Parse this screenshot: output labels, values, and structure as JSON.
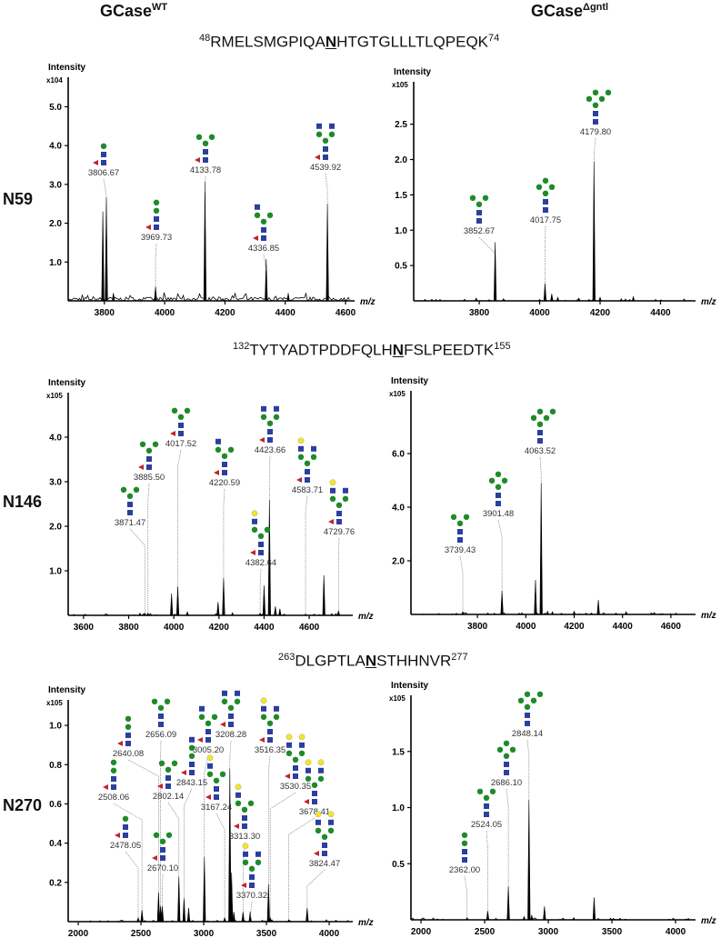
{
  "columns": {
    "wt": {
      "base": "GCase",
      "sup": "WT"
    },
    "mut": {
      "base": "GCase",
      "sup": "Δgntl"
    }
  },
  "rows": [
    {
      "site": "N59",
      "peptide": {
        "start": "48",
        "pre": "RMELSMGPIQA",
        "n": "N",
        "post": "HTGTGLLLTLQPEQK",
        "end": "74"
      }
    },
    {
      "site": "N146",
      "peptide": {
        "start": "132",
        "pre": "TYTYADTPDDFQLH",
        "n": "N",
        "post": "FSLPEEDTK",
        "end": "155"
      }
    },
    {
      "site": "N270",
      "peptide": {
        "start": "263",
        "pre": "DLGPTLA",
        "n": "N",
        "post": "STHHNVR",
        "end": "277"
      }
    }
  ],
  "colors": {
    "glcnac": "#2b3f9e",
    "man": "#1f8a2a",
    "fuc": "#c0242b",
    "gal": "#f2e52a",
    "spectrum": "#000000"
  },
  "chart_data": [
    {
      "type": "line",
      "panel": "N59-WT",
      "ylabel": "Intensity",
      "yscale": "x10^4",
      "xlabel": "m/z",
      "xlim": [
        3680,
        4630
      ],
      "ylim": [
        0,
        5.76
      ],
      "xticks": [
        "3800",
        "4000",
        "4200",
        "4400",
        "4600"
      ],
      "yticks": [
        "1.0",
        "2.0",
        "3.0",
        "4.0",
        "5.0"
      ],
      "peaks": [
        [
          3795,
          2.3
        ],
        [
          3806.67,
          2.67
        ],
        [
          3830,
          0.2
        ],
        [
          3969.73,
          0.37
        ],
        [
          4133.78,
          3.07
        ],
        [
          4336.85,
          1.08
        ],
        [
          4410,
          0.2
        ],
        [
          4539.92,
          2.5
        ]
      ],
      "annotations": [
        {
          "label": "3806.67",
          "glycan": {
            "fuc": true,
            "core": 2,
            "man": 1,
            "branch": 0,
            "ant": 0,
            "gal": 0
          }
        },
        {
          "label": "3969.73",
          "glycan": {
            "fuc": true,
            "core": 2,
            "man": 2,
            "branch": 0,
            "ant": 0,
            "gal": 0
          }
        },
        {
          "label": "4133.78",
          "glycan": {
            "fuc": true,
            "core": 2,
            "man": 3,
            "branch": 2,
            "ant": 0,
            "gal": 0
          }
        },
        {
          "label": "4336.85",
          "glycan": {
            "fuc": true,
            "core": 2,
            "man": 3,
            "branch": 2,
            "ant": 1,
            "gal": 0
          }
        },
        {
          "label": "4539.92",
          "glycan": {
            "fuc": true,
            "core": 2,
            "man": 3,
            "branch": 2,
            "ant": 2,
            "gal": 0
          }
        }
      ]
    },
    {
      "type": "line",
      "panel": "N59-dgntl",
      "ylabel": "Intensity",
      "yscale": "x10^5",
      "xlabel": "m/z",
      "xlim": [
        3583,
        4516
      ],
      "ylim": [
        0,
        3.1
      ],
      "xticks": [
        "3800",
        "4000",
        "4200",
        "4400"
      ],
      "yticks": [
        "0.5",
        "1.0",
        "1.5",
        "2.0",
        "2.5"
      ],
      "peaks": [
        [
          3790,
          0.04
        ],
        [
          3852.67,
          0.83
        ],
        [
          3880,
          0.03
        ],
        [
          4017.75,
          0.25
        ],
        [
          4040,
          0.1
        ],
        [
          4060,
          0.05
        ],
        [
          4130,
          0.04
        ],
        [
          4179.8,
          1.97
        ],
        [
          4200,
          0.05
        ],
        [
          4270,
          0.03
        ],
        [
          4310,
          0.06
        ]
      ],
      "annotations": [
        {
          "label": "3852.67",
          "glycan": {
            "fuc": false,
            "core": 2,
            "man": 3,
            "branch": 2,
            "ant": 0,
            "gal": 0
          }
        },
        {
          "label": "4017.75",
          "glycan": {
            "fuc": false,
            "core": 2,
            "man": 4,
            "branch": 2,
            "ant": 0,
            "gal": 0
          }
        },
        {
          "label": "4179.80",
          "glycan": {
            "fuc": false,
            "core": 2,
            "man": 5,
            "branch": 2,
            "ant": 0,
            "gal": 0
          }
        }
      ]
    },
    {
      "type": "line",
      "panel": "N146-WT",
      "ylabel": "Intensity",
      "yscale": "x10^5",
      "xlabel": "m/z",
      "xlim": [
        3532,
        4793
      ],
      "ylim": [
        0,
        5.0
      ],
      "xticks": [
        "3600",
        "3800",
        "4000",
        "4200",
        "4400",
        "4600"
      ],
      "yticks": [
        "1.0",
        "2.0",
        "3.0",
        "4.0"
      ],
      "peaks": [
        [
          3850,
          0.05
        ],
        [
          3871.47,
          0.05
        ],
        [
          3885.5,
          0.05
        ],
        [
          3990,
          0.49
        ],
        [
          4017.52,
          0.65
        ],
        [
          4060,
          0.08
        ],
        [
          4196,
          0.3
        ],
        [
          4220.59,
          0.84
        ],
        [
          4260,
          0.06
        ],
        [
          4382.64,
          0.05
        ],
        [
          4400,
          0.67
        ],
        [
          4423.66,
          2.6
        ],
        [
          4450,
          0.2
        ],
        [
          4470,
          0.15
        ],
        [
          4583.71,
          0.03
        ],
        [
          4665,
          0.9
        ],
        [
          4700,
          0.04
        ],
        [
          4729.76,
          0.1
        ]
      ],
      "annotations": [
        {
          "label": "3871.47",
          "glycan": {
            "fuc": false,
            "core": 2,
            "man": 3,
            "branch": 2,
            "ant": 0,
            "gal": 0
          }
        },
        {
          "label": "3885.50",
          "glycan": {
            "fuc": true,
            "core": 2,
            "man": 3,
            "branch": 2,
            "ant": 0,
            "gal": 0
          }
        },
        {
          "label": "4017.52",
          "glycan": {
            "fuc": true,
            "core": 2,
            "man": 3,
            "branch": 2,
            "ant": 0,
            "gal": 0
          }
        },
        {
          "label": "4220.59",
          "glycan": {
            "fuc": true,
            "core": 2,
            "man": 3,
            "branch": 2,
            "ant": 1,
            "gal": 0
          }
        },
        {
          "label": "4382.64",
          "glycan": {
            "fuc": true,
            "core": 2,
            "man": 3,
            "branch": 2,
            "ant": 1,
            "gal": 1
          }
        },
        {
          "label": "4423.66",
          "glycan": {
            "fuc": true,
            "core": 2,
            "man": 3,
            "branch": 2,
            "ant": 2,
            "gal": 0
          }
        },
        {
          "label": "4583.71",
          "glycan": {
            "fuc": true,
            "core": 2,
            "man": 3,
            "branch": 2,
            "ant": 2,
            "gal": 1
          }
        },
        {
          "label": "4729.76",
          "glycan": {
            "fuc": true,
            "core": 2,
            "man": 3,
            "branch": 2,
            "ant": 2,
            "gal": 1
          }
        }
      ]
    },
    {
      "type": "line",
      "panel": "N146-dgntl",
      "ylabel": "Intensity",
      "yscale": "x10^5",
      "xlabel": "m/z",
      "xlim": [
        3525,
        4702
      ],
      "ylim": [
        0,
        8.34
      ],
      "xticks": [
        "3800",
        "4000",
        "4200",
        "4400",
        "4600"
      ],
      "yticks": [
        "2.0",
        "4.0",
        "6.0"
      ],
      "peaks": [
        [
          3739.43,
          0.1
        ],
        [
          3870,
          0.05
        ],
        [
          3901.48,
          0.88
        ],
        [
          4040,
          1.29
        ],
        [
          4063.52,
          4.9
        ],
        [
          4090,
          0.12
        ],
        [
          4110,
          0.1
        ],
        [
          4200,
          0.12
        ],
        [
          4300,
          0.54
        ],
        [
          4415,
          0.1
        ]
      ],
      "annotations": [
        {
          "label": "3739.43",
          "glycan": {
            "fuc": false,
            "core": 2,
            "man": 3,
            "branch": 2,
            "ant": 0,
            "gal": 0
          }
        },
        {
          "label": "3901.48",
          "glycan": {
            "fuc": false,
            "core": 2,
            "man": 4,
            "branch": 2,
            "ant": 0,
            "gal": 0
          }
        },
        {
          "label": "4063.52",
          "glycan": {
            "fuc": false,
            "core": 2,
            "man": 5,
            "branch": 2,
            "ant": 0,
            "gal": 0
          }
        }
      ]
    },
    {
      "type": "line",
      "panel": "N270-WT",
      "ylabel": "Intensity",
      "yscale": "x10^5",
      "xlabel": "m/z",
      "xlim": [
        1920,
        4188
      ],
      "ylim": [
        0,
        1.13
      ],
      "xticks": [
        "2000",
        "2500",
        "3000",
        "3500",
        "4000"
      ],
      "yticks": [
        "0.2",
        "0.4",
        "0.6",
        "0.8",
        "1.0"
      ],
      "peaks": [
        [
          2478.05,
          0.02
        ],
        [
          2508.06,
          0.06
        ],
        [
          2640.08,
          0.15
        ],
        [
          2656.09,
          0.08
        ],
        [
          2670.1,
          0.08
        ],
        [
          2802.14,
          0.23
        ],
        [
          2843.15,
          0.12
        ],
        [
          2880,
          0.07
        ],
        [
          3005.2,
          0.33
        ],
        [
          3167.24,
          0.02
        ],
        [
          3208.28,
          0.78
        ],
        [
          3222,
          0.25
        ],
        [
          3240,
          0.05
        ],
        [
          3313.3,
          0.05
        ],
        [
          3370.32,
          0.05
        ],
        [
          3516.35,
          0.19
        ],
        [
          3530.35,
          0.02
        ],
        [
          3678.41,
          0.01
        ],
        [
          3824.47,
          0.07
        ]
      ],
      "annotations": [
        {
          "label": "2478.05",
          "glycan": {
            "fuc": true,
            "core": 2,
            "man": 1,
            "branch": 0,
            "ant": 0,
            "gal": 0
          }
        },
        {
          "label": "2508.06",
          "glycan": {
            "fuc": true,
            "core": 2,
            "man": 2,
            "branch": 0,
            "ant": 0,
            "gal": 0
          }
        },
        {
          "label": "2640.08",
          "glycan": {
            "fuc": true,
            "core": 2,
            "man": 2,
            "branch": 0,
            "ant": 0,
            "gal": 0
          }
        },
        {
          "label": "2656.09",
          "glycan": {
            "fuc": false,
            "core": 2,
            "man": 3,
            "branch": 2,
            "ant": 0,
            "gal": 0
          }
        },
        {
          "label": "2670.10",
          "glycan": {
            "fuc": true,
            "core": 2,
            "man": 3,
            "branch": 2,
            "ant": 0,
            "gal": 0
          }
        },
        {
          "label": "2802.14",
          "glycan": {
            "fuc": true,
            "core": 2,
            "man": 3,
            "branch": 2,
            "ant": 0,
            "gal": 0
          }
        },
        {
          "label": "2843.15",
          "glycan": {
            "fuc": true,
            "core": 2,
            "man": 2,
            "branch": 0,
            "ant": 1,
            "gal": 0
          }
        },
        {
          "label": "3005.20",
          "glycan": {
            "fuc": true,
            "core": 2,
            "man": 3,
            "branch": 2,
            "ant": 1,
            "gal": 0
          }
        },
        {
          "label": "3167.24",
          "glycan": {
            "fuc": true,
            "core": 2,
            "man": 3,
            "branch": 2,
            "ant": 1,
            "gal": 1
          }
        },
        {
          "label": "3208.28",
          "glycan": {
            "fuc": true,
            "core": 2,
            "man": 3,
            "branch": 2,
            "ant": 2,
            "gal": 0
          }
        },
        {
          "label": "3313.30",
          "glycan": {
            "fuc": true,
            "core": 2,
            "man": 3,
            "branch": 2,
            "ant": 1,
            "gal": 1
          }
        },
        {
          "label": "3370.32",
          "glycan": {
            "fuc": true,
            "core": 2,
            "man": 3,
            "branch": 2,
            "ant": 2,
            "gal": 1
          }
        },
        {
          "label": "3516.35",
          "glycan": {
            "fuc": true,
            "core": 2,
            "man": 3,
            "branch": 2,
            "ant": 2,
            "gal": 1
          }
        },
        {
          "label": "3530.35",
          "glycan": {
            "fuc": true,
            "core": 2,
            "man": 3,
            "branch": 2,
            "ant": 2,
            "gal": 2
          }
        },
        {
          "label": "3678.41",
          "glycan": {
            "fuc": true,
            "core": 2,
            "man": 3,
            "branch": 2,
            "ant": 2,
            "gal": 2
          }
        },
        {
          "label": "3824.47",
          "glycan": {
            "fuc": true,
            "core": 2,
            "man": 3,
            "branch": 2,
            "ant": 2,
            "gal": 2
          }
        }
      ]
    },
    {
      "type": "line",
      "panel": "N270-dgntl",
      "ylabel": "Intensity",
      "yscale": "x10^5",
      "xlabel": "m/z",
      "xlim": [
        1921,
        4157
      ],
      "ylim": [
        0,
        2.0
      ],
      "xticks": [
        "2000",
        "2500",
        "3000",
        "3500",
        "4000"
      ],
      "yticks": [
        "0.5",
        "1.0",
        "1.5"
      ],
      "peaks": [
        [
          2362.0,
          0.02
        ],
        [
          2524.05,
          0.08
        ],
        [
          2686.1,
          0.3
        ],
        [
          2810,
          0.03
        ],
        [
          2848.14,
          1.07
        ],
        [
          2870,
          0.04
        ],
        [
          2970,
          0.12
        ],
        [
          3200,
          0.02
        ],
        [
          3360,
          0.2
        ]
      ],
      "annotations": [
        {
          "label": "2362.00",
          "glycan": {
            "fuc": false,
            "core": 2,
            "man": 2,
            "branch": 0,
            "ant": 0,
            "gal": 0
          }
        },
        {
          "label": "2524.05",
          "glycan": {
            "fuc": false,
            "core": 2,
            "man": 3,
            "branch": 2,
            "ant": 0,
            "gal": 0
          }
        },
        {
          "label": "2686.10",
          "glycan": {
            "fuc": false,
            "core": 2,
            "man": 4,
            "branch": 2,
            "ant": 0,
            "gal": 0
          }
        },
        {
          "label": "2848.14",
          "glycan": {
            "fuc": false,
            "core": 2,
            "man": 5,
            "branch": 2,
            "ant": 0,
            "gal": 0
          }
        }
      ]
    }
  ]
}
